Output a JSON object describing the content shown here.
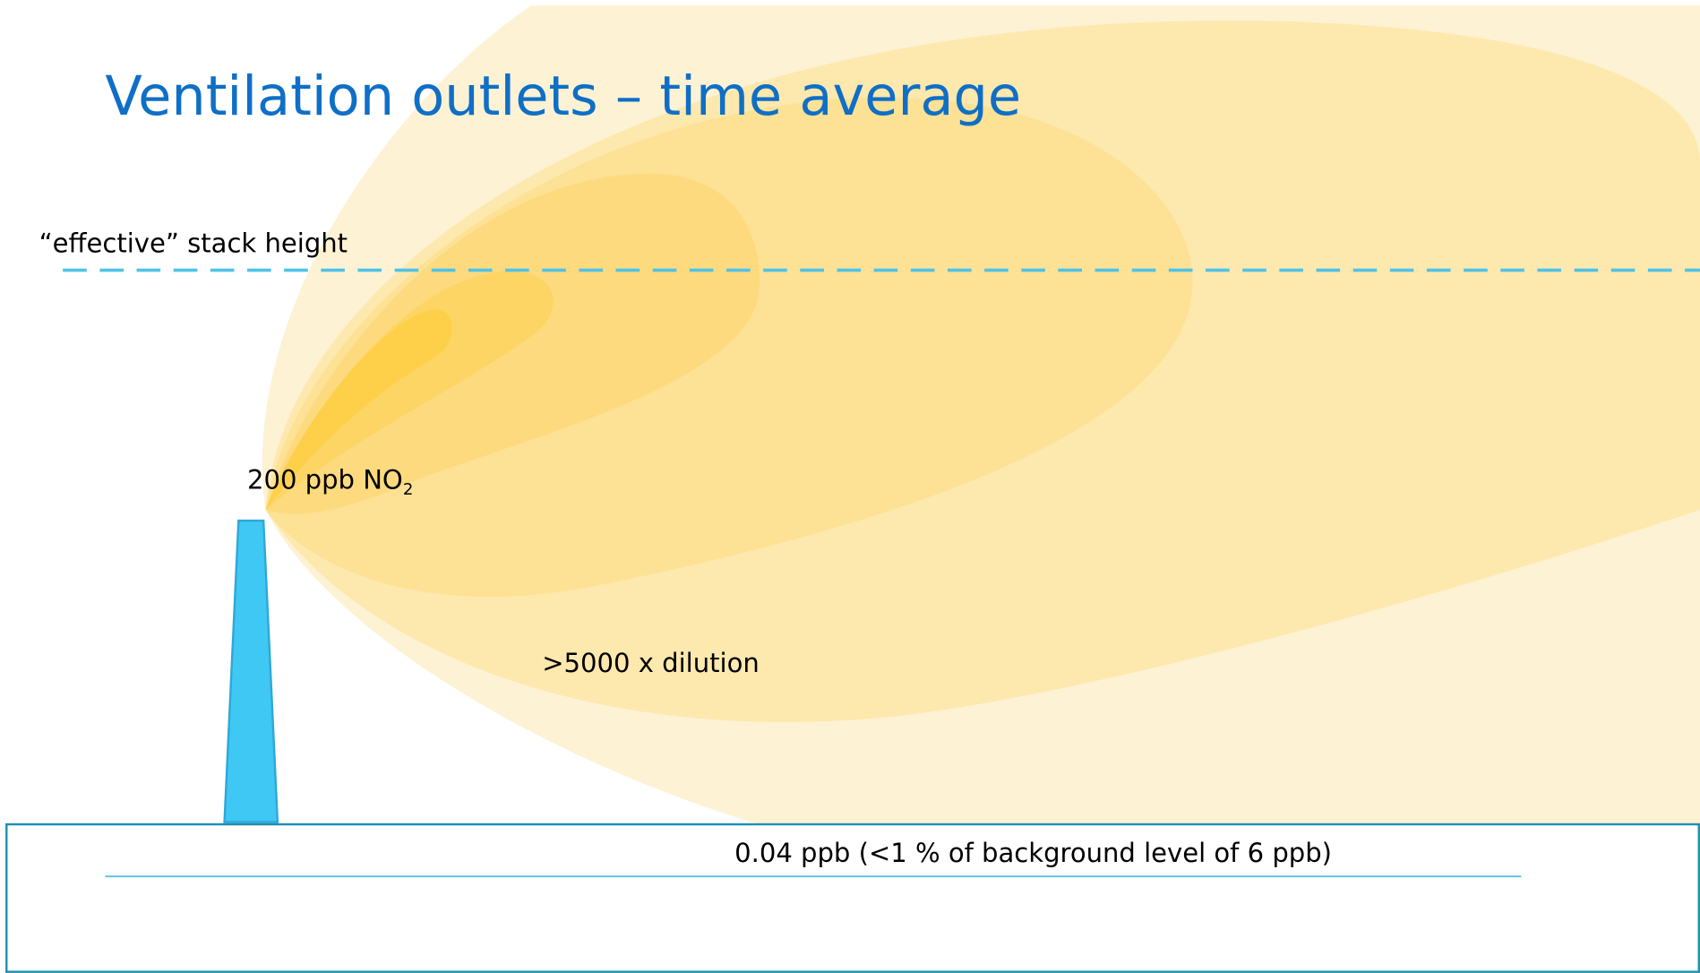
{
  "title": "Ventilation outlets – time average",
  "labels": {
    "stack_height": "“effective” stack height",
    "source": {
      "text": "200 ppb NO",
      "subscript": "2"
    },
    "dilution": ">5000 x dilution",
    "ground": "0.04 ppb (<1 % of background level of 6 ppb)"
  }
}
